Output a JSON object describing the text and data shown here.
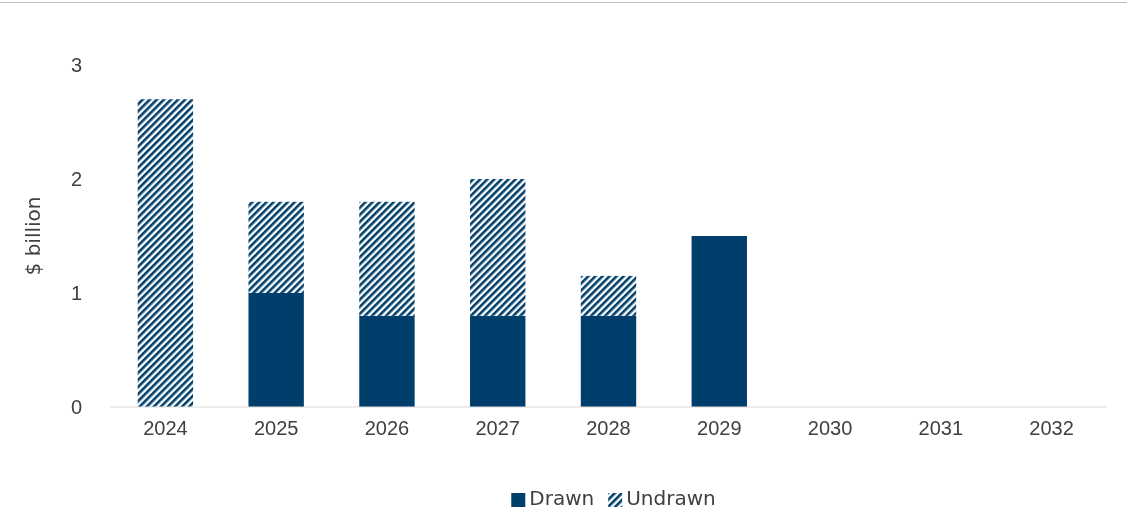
{
  "chart_data": {
    "type": "bar",
    "stacked": true,
    "ylabel": "$ billion",
    "categories": [
      "2024",
      "2025",
      "2026",
      "2027",
      "2028",
      "2029",
      "2030",
      "2031",
      "2032"
    ],
    "series": [
      {
        "name": "Drawn",
        "color": "#003f6b",
        "values": [
          0,
          1,
          0.8,
          0.8,
          0.8,
          1.5,
          0,
          0,
          0
        ]
      },
      {
        "name": "Undrawn",
        "color": "#003f6b",
        "values": [
          2.7,
          0.8,
          1,
          1.2,
          0.35,
          0,
          0,
          0,
          0
        ]
      }
    ],
    "ylim": [
      0,
      3
    ],
    "yticks": [
      0,
      1,
      2,
      3
    ],
    "grid": false,
    "legend": "bottom"
  }
}
